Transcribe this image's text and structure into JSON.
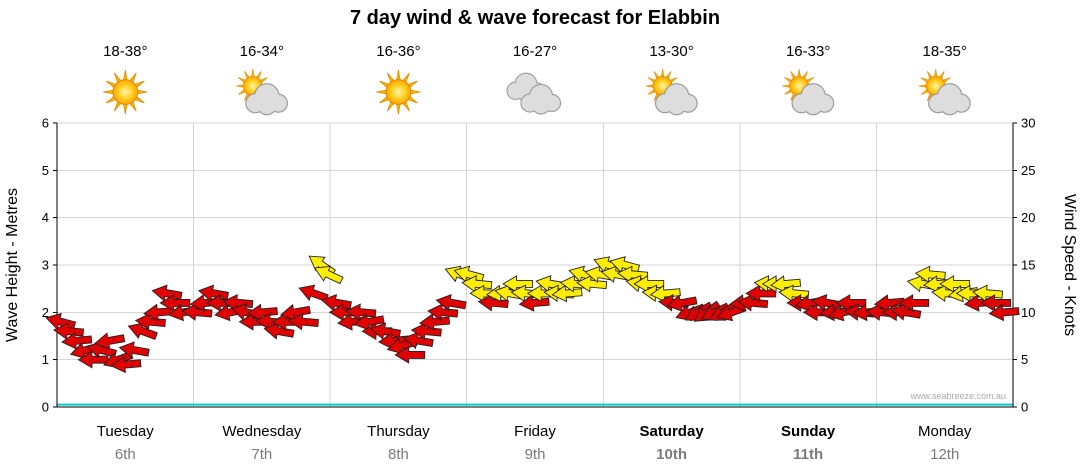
{
  "watermark": "www.seabreeze.com.au",
  "chart_data": {
    "type": "wind_wave_forecast",
    "title": "7 day wind & wave forecast for Elabbin",
    "left_axis": {
      "label": "Wave Height - Metres",
      "min": 0,
      "max": 6,
      "tick_step": 1
    },
    "right_axis": {
      "label": "Wind Speed - Knots",
      "min": 0,
      "max": 30,
      "tick_step": 5
    },
    "days": [
      {
        "name": "Tuesday",
        "date": "6th",
        "temp": "18-38°",
        "icon": "sun",
        "weekend": false
      },
      {
        "name": "Wednesday",
        "date": "7th",
        "temp": "16-34°",
        "icon": "sun-cloud",
        "weekend": false
      },
      {
        "name": "Thursday",
        "date": "8th",
        "temp": "16-36°",
        "icon": "sun",
        "weekend": false
      },
      {
        "name": "Friday",
        "date": "9th",
        "temp": "16-27°",
        "icon": "cloud",
        "weekend": false
      },
      {
        "name": "Saturday",
        "date": "10th",
        "temp": "13-30°",
        "icon": "sun-cloud",
        "weekend": true
      },
      {
        "name": "Sunday",
        "date": "11th",
        "temp": "16-33°",
        "icon": "sun-cloud",
        "weekend": true
      },
      {
        "name": "Monday",
        "date": "12th",
        "temp": "18-35°",
        "icon": "sun-cloud",
        "weekend": false
      }
    ],
    "wave_height_m": 0.05,
    "colors": {
      "light_wind": "#e00000",
      "strong_wind": "#ffee00",
      "wave_line": "#00cccc"
    },
    "arrow_format": "[day_offset_0to7, wind_speed_knots, direction_deg_0isEast, color r=red y=yellow]",
    "wind_arrows": [
      [
        0.03,
        9,
        195,
        "r"
      ],
      [
        0.09,
        8,
        185,
        "r"
      ],
      [
        0.15,
        7,
        175,
        "r"
      ],
      [
        0.21,
        6,
        165,
        "r"
      ],
      [
        0.27,
        5,
        180,
        "r"
      ],
      [
        0.33,
        6,
        195,
        "r"
      ],
      [
        0.39,
        7,
        170,
        "r"
      ],
      [
        0.45,
        5,
        160,
        "r"
      ],
      [
        0.51,
        4.5,
        175,
        "r"
      ],
      [
        0.57,
        6,
        190,
        "r"
      ],
      [
        0.63,
        8,
        200,
        "r"
      ],
      [
        0.69,
        9,
        185,
        "r"
      ],
      [
        0.75,
        10,
        175,
        "r"
      ],
      [
        0.81,
        12,
        190,
        "r"
      ],
      [
        0.87,
        11,
        180,
        "r"
      ],
      [
        0.93,
        10,
        170,
        "r"
      ],
      [
        1.03,
        10,
        185,
        "r"
      ],
      [
        1.09,
        11,
        175,
        "r"
      ],
      [
        1.15,
        12,
        190,
        "r"
      ],
      [
        1.21,
        11,
        180,
        "r"
      ],
      [
        1.27,
        10,
        170,
        "r"
      ],
      [
        1.33,
        11,
        185,
        "r"
      ],
      [
        1.39,
        10,
        195,
        "r"
      ],
      [
        1.45,
        9,
        180,
        "r"
      ],
      [
        1.51,
        10,
        175,
        "r"
      ],
      [
        1.57,
        9,
        185,
        "r"
      ],
      [
        1.63,
        8,
        190,
        "r"
      ],
      [
        1.69,
        9,
        180,
        "r"
      ],
      [
        1.75,
        10,
        170,
        "r"
      ],
      [
        1.81,
        9,
        185,
        "r"
      ],
      [
        1.88,
        12,
        200,
        "r"
      ],
      [
        1.94,
        15,
        215,
        "y"
      ],
      [
        1.99,
        14,
        205,
        "y"
      ],
      [
        2.05,
        11,
        190,
        "r"
      ],
      [
        2.11,
        10,
        180,
        "r"
      ],
      [
        2.17,
        9,
        175,
        "r"
      ],
      [
        2.23,
        10,
        185,
        "r"
      ],
      [
        2.29,
        9,
        170,
        "r"
      ],
      [
        2.35,
        8,
        180,
        "r"
      ],
      [
        2.41,
        8,
        190,
        "r"
      ],
      [
        2.47,
        7,
        175,
        "r"
      ],
      [
        2.53,
        6.5,
        165,
        "r"
      ],
      [
        2.59,
        5.5,
        180,
        "r"
      ],
      [
        2.65,
        7,
        190,
        "r"
      ],
      [
        2.71,
        8,
        185,
        "r"
      ],
      [
        2.77,
        9,
        175,
        "r"
      ],
      [
        2.83,
        10,
        185,
        "r"
      ],
      [
        2.89,
        11,
        190,
        "r"
      ],
      [
        2.95,
        14,
        200,
        "y"
      ],
      [
        3.02,
        14,
        195,
        "y"
      ],
      [
        3.08,
        13,
        185,
        "y"
      ],
      [
        3.14,
        12,
        180,
        "y"
      ],
      [
        3.2,
        11,
        185,
        "r"
      ],
      [
        3.26,
        12,
        175,
        "y"
      ],
      [
        3.32,
        12,
        190,
        "y"
      ],
      [
        3.38,
        13,
        180,
        "y"
      ],
      [
        3.44,
        12,
        185,
        "y"
      ],
      [
        3.5,
        11,
        175,
        "r"
      ],
      [
        3.56,
        12,
        180,
        "y"
      ],
      [
        3.62,
        13,
        190,
        "y"
      ],
      [
        3.68,
        12,
        185,
        "y"
      ],
      [
        3.74,
        12,
        175,
        "y"
      ],
      [
        3.8,
        13,
        185,
        "y"
      ],
      [
        3.86,
        14,
        195,
        "y"
      ],
      [
        3.92,
        13,
        185,
        "y"
      ],
      [
        3.98,
        14,
        190,
        "y"
      ],
      [
        4.04,
        15,
        200,
        "y"
      ],
      [
        4.1,
        14,
        190,
        "y"
      ],
      [
        4.16,
        15,
        195,
        "y"
      ],
      [
        4.22,
        14,
        185,
        "y"
      ],
      [
        4.28,
        13,
        190,
        "y"
      ],
      [
        4.34,
        13,
        180,
        "y"
      ],
      [
        4.4,
        12,
        185,
        "y"
      ],
      [
        4.46,
        12,
        175,
        "y"
      ],
      [
        4.52,
        11,
        185,
        "r"
      ],
      [
        4.58,
        11,
        170,
        "r"
      ],
      [
        4.64,
        10,
        160,
        "r"
      ],
      [
        4.7,
        10,
        150,
        "r"
      ],
      [
        4.76,
        10,
        145,
        "r"
      ],
      [
        4.82,
        10,
        155,
        "r"
      ],
      [
        4.88,
        10,
        150,
        "r"
      ],
      [
        4.94,
        10,
        160,
        "r"
      ],
      [
        5.04,
        11,
        175,
        "r"
      ],
      [
        5.1,
        11,
        185,
        "r"
      ],
      [
        5.16,
        12,
        180,
        "r"
      ],
      [
        5.22,
        13,
        185,
        "y"
      ],
      [
        5.28,
        13,
        180,
        "y"
      ],
      [
        5.34,
        13,
        175,
        "y"
      ],
      [
        5.4,
        12,
        185,
        "y"
      ],
      [
        5.46,
        11,
        180,
        "r"
      ],
      [
        5.52,
        11,
        170,
        "r"
      ],
      [
        5.58,
        10,
        180,
        "r"
      ],
      [
        5.64,
        11,
        190,
        "r"
      ],
      [
        5.7,
        10,
        175,
        "r"
      ],
      [
        5.76,
        10,
        165,
        "r"
      ],
      [
        5.82,
        11,
        180,
        "r"
      ],
      [
        5.88,
        10,
        185,
        "r"
      ],
      [
        5.94,
        10,
        175,
        "r"
      ],
      [
        6.04,
        10,
        185,
        "r"
      ],
      [
        6.1,
        11,
        175,
        "r"
      ],
      [
        6.16,
        10,
        180,
        "r"
      ],
      [
        6.22,
        10,
        190,
        "r"
      ],
      [
        6.28,
        11,
        180,
        "r"
      ],
      [
        6.34,
        13,
        190,
        "y"
      ],
      [
        6.4,
        14,
        185,
        "y"
      ],
      [
        6.46,
        13,
        175,
        "y"
      ],
      [
        6.52,
        12,
        185,
        "y"
      ],
      [
        6.58,
        13,
        180,
        "y"
      ],
      [
        6.64,
        12,
        170,
        "y"
      ],
      [
        6.7,
        12,
        180,
        "y"
      ],
      [
        6.76,
        11,
        175,
        "r"
      ],
      [
        6.82,
        12,
        185,
        "y"
      ],
      [
        6.88,
        11,
        180,
        "r"
      ],
      [
        6.94,
        10,
        175,
        "r"
      ]
    ]
  }
}
